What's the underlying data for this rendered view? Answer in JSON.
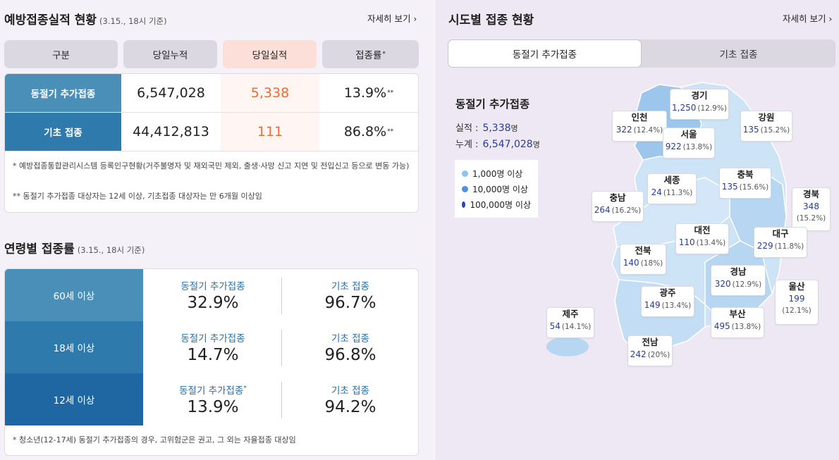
{
  "vaccination": {
    "title": "예방접종실적 현황",
    "subtitle": "(3.15., 18시 기준)",
    "more": "자세히 보기",
    "headers": [
      "구분",
      "당일누적",
      "당일실적",
      "접종률"
    ],
    "rate_mark": "*",
    "rows": [
      {
        "label": "동절기 추가접종",
        "cumulative": "6,547,028",
        "today": "5,338",
        "rate": "13.9%",
        "mark": "**"
      },
      {
        "label": "기초 접종",
        "cumulative": "44,412,813",
        "today": "111",
        "rate": "86.8%",
        "mark": "**"
      }
    ],
    "notes": [
      "* 예방접종통합관리시스템 등록인구현황(거주불명자 및 재외국민 제외, 출생·사망 신고 지연 및 전입신고 등으로 변동 가능)",
      "** 동절기 추가접종 대상자는 12세 이상, 기초접종 대상자는 만 6개월 이상임"
    ]
  },
  "age": {
    "title": "연령별 접종률",
    "subtitle": "(3.15., 18시 기준)",
    "rows": [
      {
        "label": "60세 이상",
        "booster_label": "동절기 추가접종",
        "booster_mark": "",
        "booster": "32.9%",
        "primary_label": "기초 접종",
        "primary": "96.7%"
      },
      {
        "label": "18세 이상",
        "booster_label": "동절기 추가접종",
        "booster_mark": "",
        "booster": "14.7%",
        "primary_label": "기초 접종",
        "primary": "96.8%"
      },
      {
        "label": "12세 이상",
        "booster_label": "동절기 추가접종",
        "booster_mark": "*",
        "booster": "13.9%",
        "primary_label": "기초 접종",
        "primary": "94.2%"
      }
    ],
    "note": "* 청소년(12-17세) 동절기 추가접종의 경우, 고위험군은 권고, 그 외는 자율접종 대상임"
  },
  "regions_section": {
    "title": "시도별 접종 현황",
    "more": "자세히 보기",
    "tabs": [
      "동절기 추가접종",
      "기초 접종"
    ],
    "active_tab": 0,
    "summary": {
      "title": "동절기 추가접종",
      "perf_label": "실적 :",
      "perf_value": "5,338",
      "total_label": "누계 :",
      "total_value": "6,547,028",
      "unit": "명"
    },
    "legend": [
      {
        "label": "1,000명 이상",
        "color": "#8cc4ec"
      },
      {
        "label": "10,000명 이상",
        "color": "#4f8ee0"
      },
      {
        "label": "100,000명 이상",
        "color": "#2b48b8"
      }
    ],
    "map_colors": {
      "base": "#cde3f6",
      "mid": "#b6d6f2",
      "dark": "#9cc6ec"
    },
    "regions": {
      "gyeonggi": {
        "name": "경기",
        "value": "1,250",
        "pct": "(12.9%)"
      },
      "incheon": {
        "name": "인천",
        "value": "322",
        "pct": "(12.4%)"
      },
      "seoul": {
        "name": "서울",
        "value": "922",
        "pct": "(13.8%)"
      },
      "gangwon": {
        "name": "강원",
        "value": "135",
        "pct": "(15.2%)"
      },
      "sejong": {
        "name": "세종",
        "value": "24",
        "pct": "(11.3%)"
      },
      "chungbuk": {
        "name": "충북",
        "value": "135",
        "pct": "(15.6%)"
      },
      "chungnam": {
        "name": "충남",
        "value": "264",
        "pct": "(16.2%)"
      },
      "gyeongbuk": {
        "name": "경북",
        "value": "348",
        "pct": "(15.2%)"
      },
      "daejeon": {
        "name": "대전",
        "value": "110",
        "pct": "(13.4%)"
      },
      "daegu": {
        "name": "대구",
        "value": "229",
        "pct": "(11.8%)"
      },
      "jeonbuk": {
        "name": "전북",
        "value": "140",
        "pct": "(18%)"
      },
      "gyeongnam": {
        "name": "경남",
        "value": "320",
        "pct": "(12.9%)"
      },
      "ulsan": {
        "name": "울산",
        "value": "199",
        "pct": "(12.1%)"
      },
      "gwangju": {
        "name": "광주",
        "value": "149",
        "pct": "(13.4%)"
      },
      "jeju": {
        "name": "제주",
        "value": "54",
        "pct": "(14.1%)"
      },
      "busan": {
        "name": "부산",
        "value": "495",
        "pct": "(13.8%)"
      },
      "jeonnam": {
        "name": "전남",
        "value": "242",
        "pct": "(20%)"
      }
    }
  }
}
